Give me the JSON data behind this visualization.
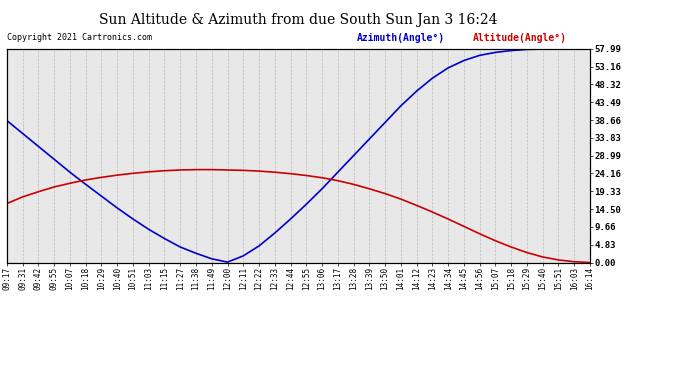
{
  "title": "Sun Altitude & Azimuth from due South Sun Jan 3 16:24",
  "copyright": "Copyright 2021 Cartronics.com",
  "legend_azimuth": "Azimuth(Angle°)",
  "legend_altitude": "Altitude(Angle°)",
  "azimuth_color": "#0000cc",
  "altitude_color": "#cc0000",
  "background_color": "#ffffff",
  "plot_bg_color": "#e8e8e8",
  "grid_color": "#bbbbbb",
  "yticks": [
    0.0,
    4.83,
    9.66,
    14.5,
    19.33,
    24.16,
    28.99,
    33.83,
    38.66,
    43.49,
    48.32,
    53.16,
    57.99
  ],
  "ymin": 0.0,
  "ymax": 57.99,
  "time_labels": [
    "09:17",
    "09:31",
    "09:42",
    "09:55",
    "10:07",
    "10:18",
    "10:29",
    "10:40",
    "10:51",
    "11:03",
    "11:15",
    "11:27",
    "11:38",
    "11:49",
    "12:00",
    "12:11",
    "12:22",
    "12:33",
    "12:44",
    "12:55",
    "13:06",
    "13:17",
    "13:28",
    "13:39",
    "13:50",
    "14:01",
    "14:12",
    "14:23",
    "14:34",
    "14:45",
    "14:56",
    "15:07",
    "15:18",
    "15:29",
    "15:40",
    "15:51",
    "16:03",
    "16:14"
  ],
  "azimuth_values": [
    38.5,
    35.0,
    31.5,
    28.0,
    24.5,
    21.2,
    18.0,
    14.8,
    11.8,
    9.0,
    6.5,
    4.2,
    2.5,
    1.0,
    0.1,
    1.8,
    4.5,
    8.0,
    11.8,
    15.8,
    20.0,
    24.5,
    29.0,
    33.5,
    38.0,
    42.5,
    46.5,
    50.0,
    52.8,
    54.8,
    56.2,
    57.0,
    57.5,
    57.8,
    57.92,
    57.97,
    57.99,
    57.99
  ],
  "altitude_values": [
    16.0,
    17.8,
    19.2,
    20.5,
    21.5,
    22.4,
    23.1,
    23.7,
    24.2,
    24.6,
    24.9,
    25.1,
    25.2,
    25.2,
    25.1,
    25.0,
    24.8,
    24.5,
    24.1,
    23.6,
    23.0,
    22.2,
    21.2,
    20.0,
    18.7,
    17.2,
    15.5,
    13.7,
    11.8,
    9.8,
    7.8,
    5.9,
    4.2,
    2.7,
    1.5,
    0.7,
    0.2,
    0.0
  ]
}
